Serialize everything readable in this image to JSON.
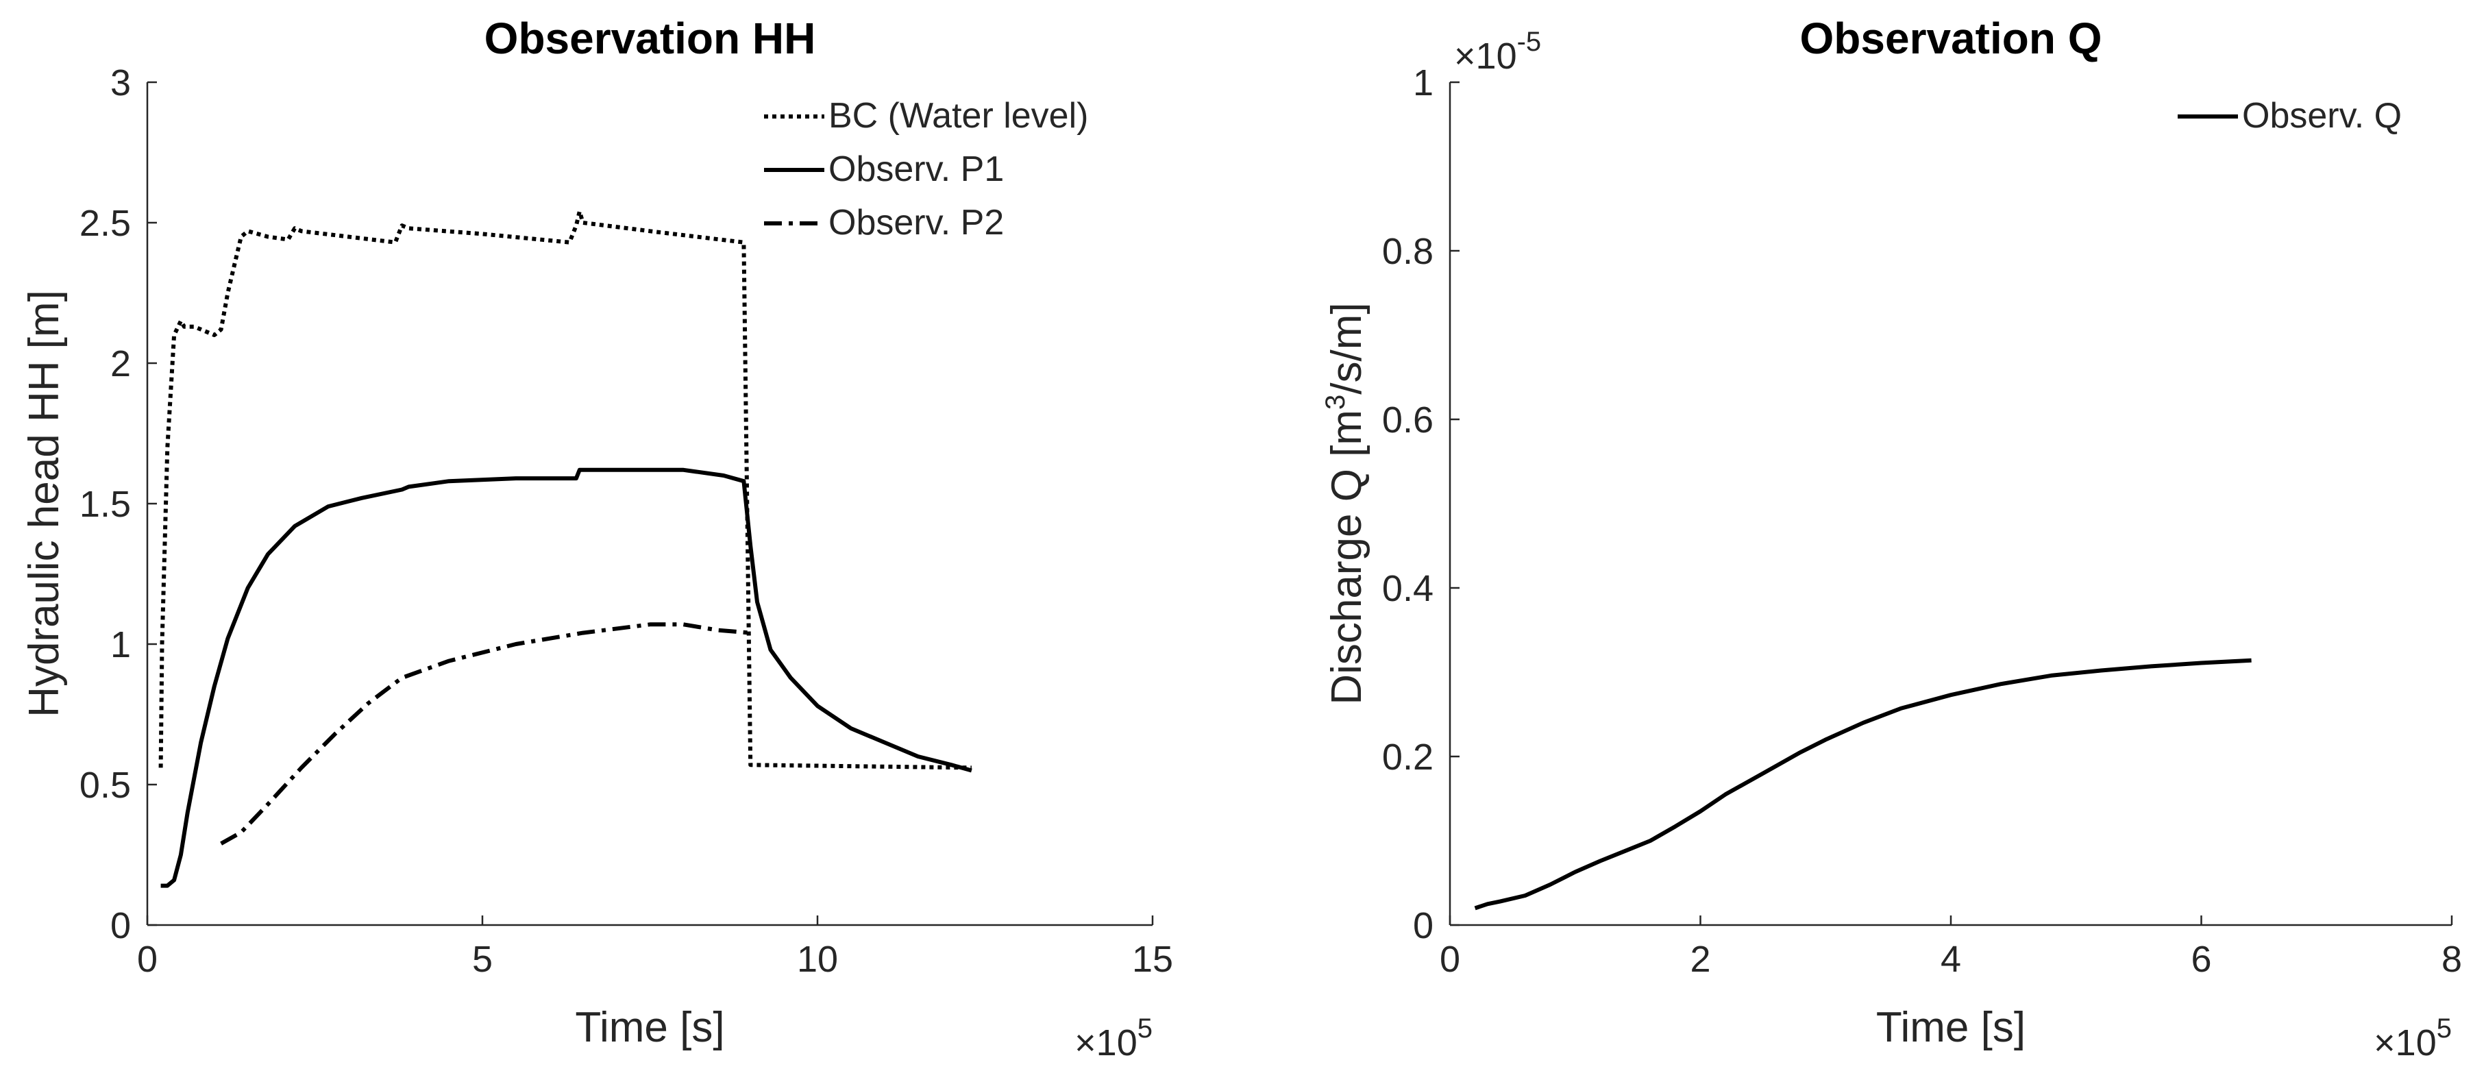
{
  "chart_data": [
    {
      "type": "line",
      "title": "Observation  HH",
      "xlabel": "Time [s]",
      "ylabel": "Hydraulic head HH [m]",
      "x_exponent": {
        "base": "×10",
        "exp": "5"
      },
      "xlim": [
        0,
        15
      ],
      "ylim": [
        0,
        3
      ],
      "xticks": [
        "0",
        "5",
        "10",
        "15"
      ],
      "yticks": [
        "0",
        "0.5",
        "1",
        "1.5",
        "2",
        "2.5",
        "3"
      ],
      "legend_position": "top-right",
      "series": [
        {
          "name": "BC (Water level)",
          "style": "dotted",
          "x": [
            0.2,
            0.22,
            0.3,
            0.4,
            0.5,
            0.55,
            0.7,
            1.0,
            1.1,
            1.2,
            1.3,
            1.4,
            1.5,
            1.8,
            2.1,
            2.2,
            2.3,
            3.0,
            3.7,
            3.8,
            3.9,
            5.0,
            6.3,
            6.4,
            6.45,
            6.5,
            7.5,
            8.9,
            8.95,
            9.0,
            12.3
          ],
          "y": [
            0.56,
            1.0,
            1.7,
            2.1,
            2.15,
            2.13,
            2.13,
            2.1,
            2.12,
            2.25,
            2.35,
            2.45,
            2.47,
            2.45,
            2.44,
            2.48,
            2.47,
            2.45,
            2.43,
            2.49,
            2.48,
            2.46,
            2.43,
            2.49,
            2.54,
            2.5,
            2.47,
            2.43,
            1.5,
            0.57,
            0.56
          ]
        },
        {
          "name": "Observ. P1",
          "style": "solid",
          "x": [
            0.2,
            0.3,
            0.4,
            0.5,
            0.6,
            0.8,
            1.0,
            1.2,
            1.5,
            1.8,
            2.2,
            2.7,
            3.2,
            3.8,
            3.9,
            4.5,
            5.5,
            6.4,
            6.45,
            7.2,
            8.0,
            8.6,
            8.9,
            9.0,
            9.1,
            9.3,
            9.6,
            10.0,
            10.5,
            11.0,
            11.5,
            12.0,
            12.3
          ],
          "y": [
            0.14,
            0.14,
            0.16,
            0.25,
            0.4,
            0.65,
            0.85,
            1.02,
            1.2,
            1.32,
            1.42,
            1.49,
            1.52,
            1.55,
            1.56,
            1.58,
            1.59,
            1.59,
            1.62,
            1.62,
            1.62,
            1.6,
            1.58,
            1.35,
            1.15,
            0.98,
            0.88,
            0.78,
            0.7,
            0.65,
            0.6,
            0.57,
            0.55
          ]
        },
        {
          "name": "Observ. P2",
          "style": "dashdot",
          "x": [
            1.1,
            1.4,
            1.8,
            2.3,
            2.8,
            3.3,
            3.8,
            4.5,
            5.5,
            6.5,
            7.5,
            8.0,
            8.5,
            9.0
          ],
          "y": [
            0.29,
            0.33,
            0.43,
            0.56,
            0.68,
            0.79,
            0.88,
            0.94,
            1.0,
            1.04,
            1.07,
            1.07,
            1.05,
            1.04
          ]
        }
      ]
    },
    {
      "type": "line",
      "title": "Observation Q",
      "xlabel": "Time [s]",
      "ylabel": {
        "main": "Discharge Q [m",
        "sup": "3",
        "rest": "/s/m]"
      },
      "x_exponent": {
        "base": "×10",
        "exp": "5"
      },
      "y_exponent": {
        "base": "×10",
        "exp": "-5"
      },
      "xlim": [
        0,
        8
      ],
      "ylim": [
        0,
        1
      ],
      "xticks": [
        "0",
        "2",
        "4",
        "6",
        "8"
      ],
      "yticks": [
        "0",
        "0.2",
        "0.4",
        "0.6",
        "0.8",
        "1"
      ],
      "legend_position": "top-right",
      "series": [
        {
          "name": "Observ. Q",
          "style": "solid",
          "x": [
            0.2,
            0.3,
            0.4,
            0.6,
            0.8,
            1.0,
            1.2,
            1.4,
            1.6,
            1.8,
            2.0,
            2.2,
            2.5,
            2.8,
            3.0,
            3.3,
            3.6,
            4.0,
            4.4,
            4.8,
            5.2,
            5.6,
            6.0,
            6.4
          ],
          "y": [
            0.02,
            0.025,
            0.028,
            0.035,
            0.048,
            0.063,
            0.076,
            0.088,
            0.1,
            0.117,
            0.135,
            0.155,
            0.18,
            0.205,
            0.22,
            0.24,
            0.257,
            0.273,
            0.286,
            0.296,
            0.302,
            0.307,
            0.311,
            0.314
          ]
        }
      ]
    }
  ]
}
